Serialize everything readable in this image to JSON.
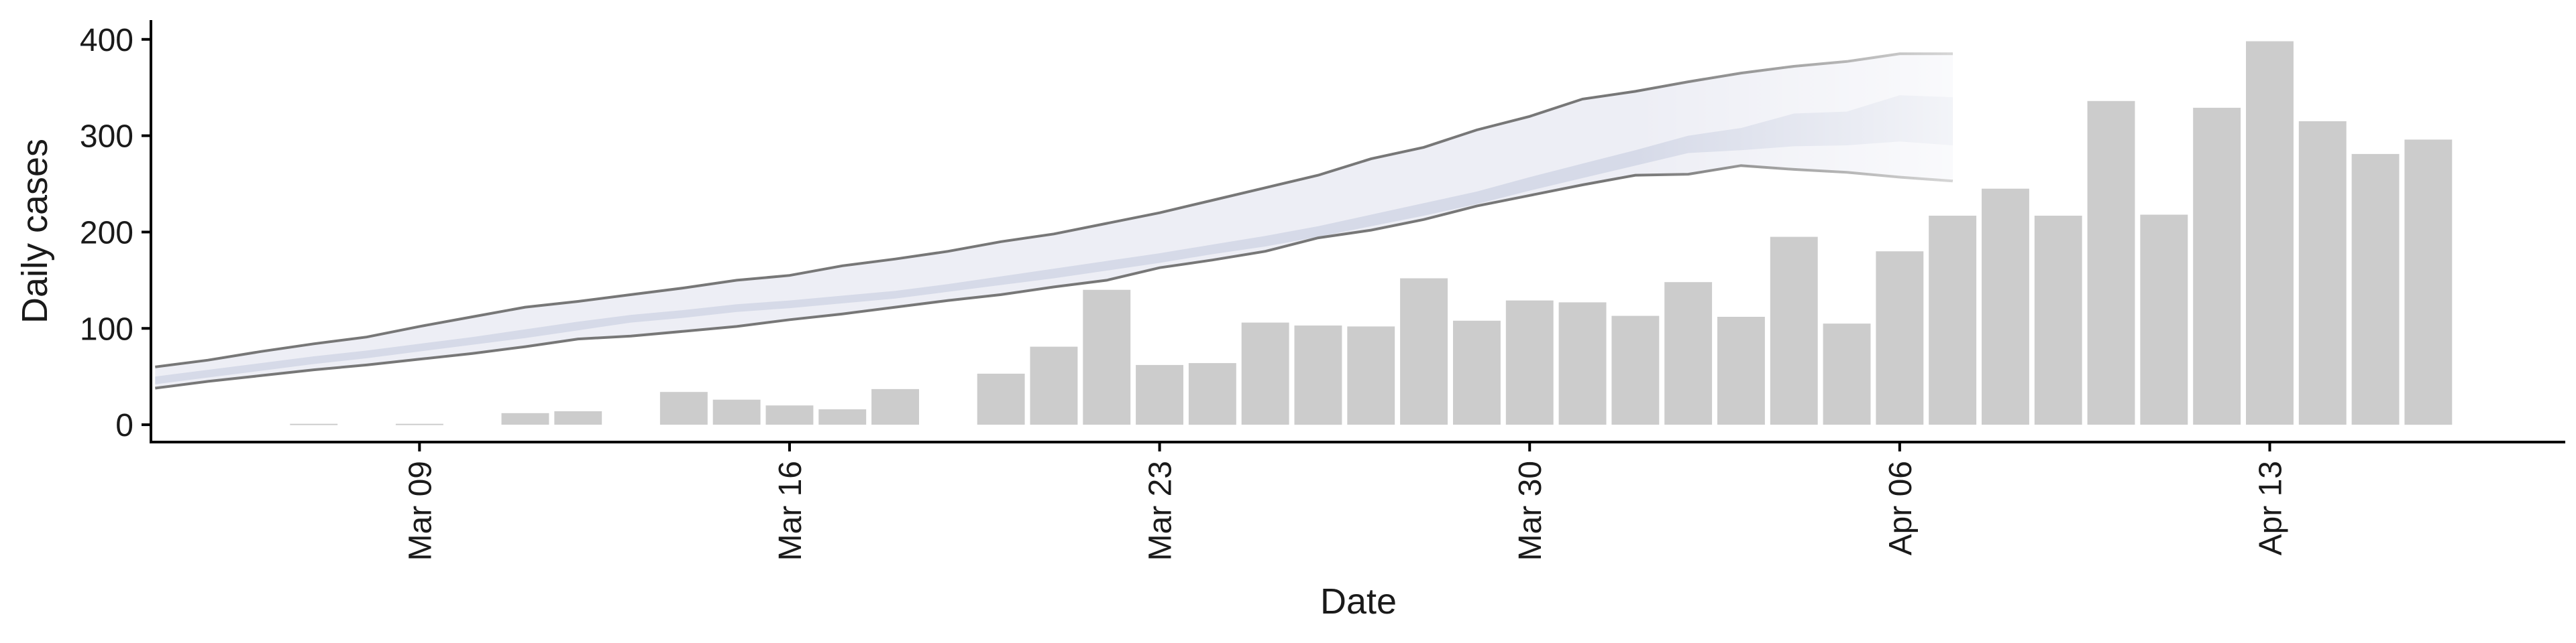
{
  "chart_data": {
    "type": "bar",
    "xlabel": "Date",
    "ylabel": "Daily cases",
    "ylim": [
      -18,
      420
    ],
    "y_ticks": [
      0,
      100,
      200,
      300,
      400
    ],
    "x_ticks": [
      {
        "day": 9,
        "label": "Mar 09"
      },
      {
        "day": 16,
        "label": "Mar 16"
      },
      {
        "day": 23,
        "label": "Mar 23"
      },
      {
        "day": 30,
        "label": "Mar 30"
      },
      {
        "day": 37,
        "label": "Apr 06"
      },
      {
        "day": 44,
        "label": "Apr 13"
      }
    ],
    "xlim": [
      3.92,
      49.59
    ],
    "grid": false,
    "bars": {
      "dates": [
        "2020-03-07",
        "2020-03-08",
        "2020-03-09",
        "2020-03-10",
        "2020-03-11",
        "2020-03-12",
        "2020-03-13",
        "2020-03-14",
        "2020-03-15",
        "2020-03-16",
        "2020-03-17",
        "2020-03-18",
        "2020-03-19",
        "2020-03-20",
        "2020-03-21",
        "2020-03-22",
        "2020-03-23",
        "2020-03-24",
        "2020-03-25",
        "2020-03-26",
        "2020-03-27",
        "2020-03-28",
        "2020-03-29",
        "2020-03-30",
        "2020-03-31",
        "2020-04-01",
        "2020-04-02",
        "2020-04-03",
        "2020-04-04",
        "2020-04-05",
        "2020-04-06",
        "2020-04-07",
        "2020-04-08",
        "2020-04-09",
        "2020-04-10",
        "2020-04-11",
        "2020-04-12",
        "2020-04-13",
        "2020-04-14",
        "2020-04-15",
        "2020-04-16"
      ],
      "days": [
        7,
        8,
        9,
        10,
        11,
        12,
        13,
        14,
        15,
        16,
        17,
        18,
        19,
        20,
        21,
        22,
        23,
        24,
        25,
        26,
        27,
        28,
        29,
        30,
        31,
        32,
        33,
        34,
        35,
        36,
        37,
        38,
        39,
        40,
        41,
        42,
        43,
        44,
        45,
        46,
        47
      ],
      "values": [
        1,
        0,
        1,
        0,
        12,
        14,
        0,
        34,
        26,
        20,
        16,
        37,
        0,
        53,
        81,
        140,
        62,
        64,
        106,
        103,
        102,
        152,
        108,
        129,
        127,
        113,
        148,
        112,
        195,
        105,
        180,
        217,
        245,
        217,
        336,
        218,
        329,
        398,
        315,
        281,
        296
      ],
      "color": "#cccccc"
    },
    "forecast": {
      "days": [
        4,
        5,
        6,
        7,
        8,
        9,
        10,
        11,
        12,
        13,
        14,
        15,
        16,
        17,
        18,
        19,
        20,
        21,
        22,
        23,
        24,
        25,
        26,
        27,
        28,
        29,
        30,
        31,
        32,
        33,
        34,
        35,
        36,
        37,
        38
      ],
      "median": [
        46,
        53,
        60,
        67,
        73,
        80,
        87,
        95,
        103,
        110,
        115,
        121,
        125,
        130,
        135,
        142,
        150,
        157,
        165,
        173,
        182,
        190,
        200,
        212,
        223,
        235,
        250,
        263,
        276,
        290,
        296,
        305,
        306,
        315,
        315
      ],
      "lower_50": [
        42,
        49,
        56,
        63,
        69,
        76,
        83,
        90,
        98,
        106,
        111,
        117,
        121,
        126,
        131,
        138,
        145,
        152,
        160,
        168,
        177,
        185,
        195,
        206,
        217,
        229,
        243,
        256,
        269,
        282,
        285,
        289,
        290,
        294,
        290
      ],
      "upper_50": [
        50,
        57,
        64,
        71,
        77,
        84,
        91,
        99,
        107,
        114,
        119,
        125,
        129,
        134,
        139,
        146,
        154,
        162,
        170,
        178,
        187,
        196,
        206,
        218,
        230,
        242,
        257,
        271,
        285,
        300,
        308,
        323,
        325,
        342,
        340
      ],
      "lower_90": [
        38,
        45,
        51,
        57,
        62,
        68,
        74,
        81,
        89,
        92,
        97,
        102,
        109,
        115,
        122,
        129,
        135,
        143,
        150,
        163,
        171,
        180,
        194,
        202,
        213,
        227,
        238,
        249,
        259,
        260,
        269,
        265,
        262,
        257,
        253
      ],
      "upper_90": [
        60,
        67,
        76,
        84,
        91,
        102,
        112,
        122,
        128,
        135,
        142,
        150,
        155,
        165,
        172,
        180,
        190,
        198,
        209,
        220,
        233,
        246,
        259,
        276,
        288,
        306,
        320,
        338,
        346,
        356,
        365,
        372,
        377,
        385,
        385
      ],
      "band_colors": [
        "#e8eaf2",
        "#ced3e3"
      ],
      "bound_line_color": "#777777"
    }
  }
}
